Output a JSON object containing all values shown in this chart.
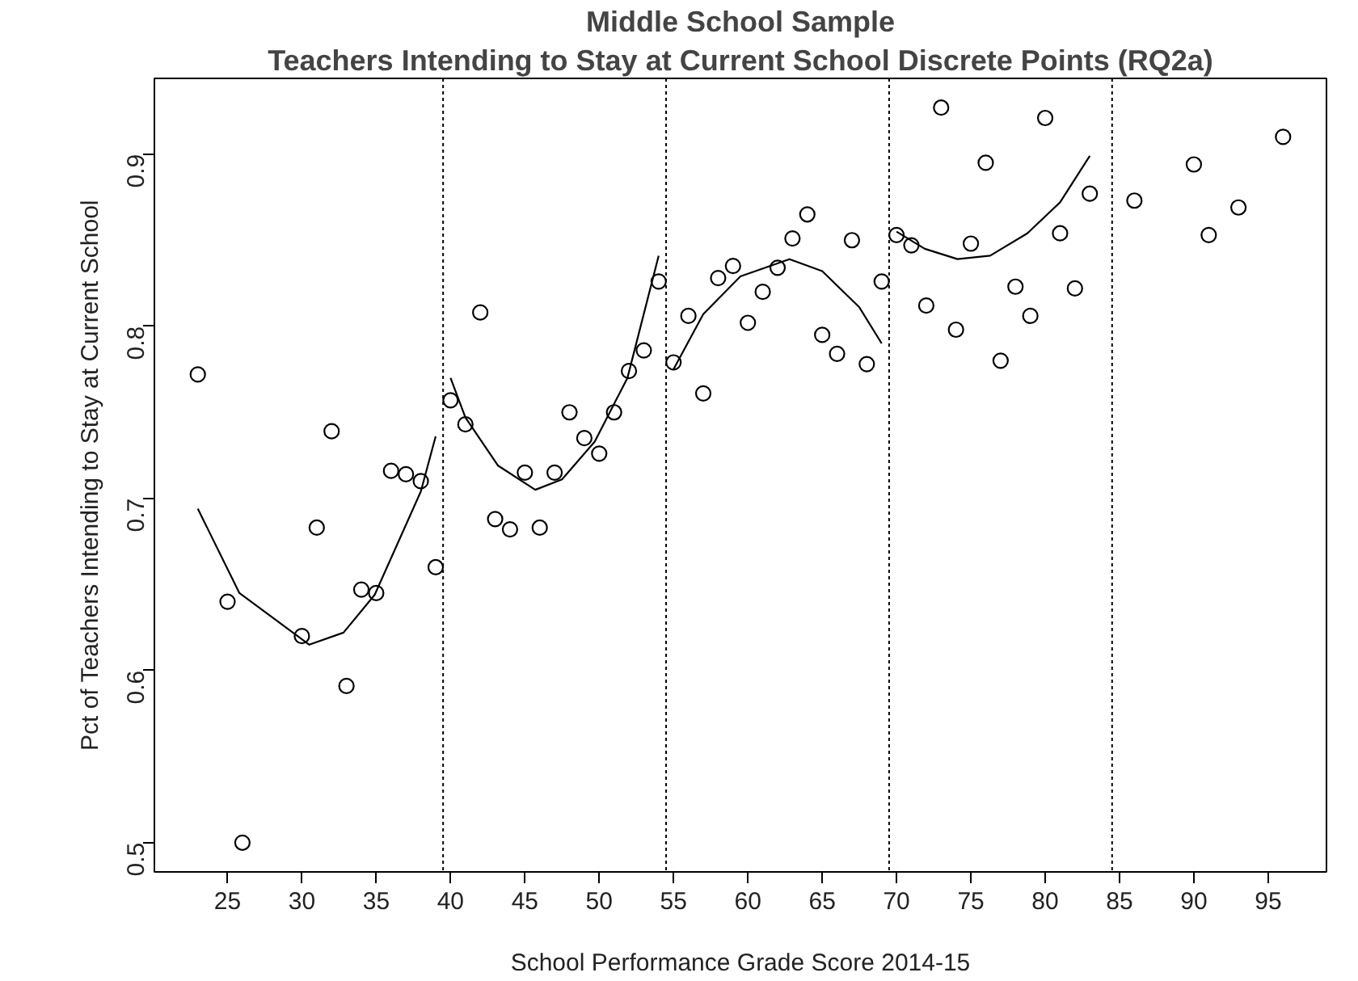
{
  "chart_data": {
    "type": "scatter",
    "title": "Middle School Sample",
    "subtitle": "Teachers Intending to Stay at Current School Discrete Points (RQ2a)",
    "xlabel": "School Performance Grade Score 2014-15",
    "ylabel": "Pct of Teachers Intending to Stay at Current School",
    "xlim": [
      20.08,
      98.92
    ],
    "ylim": [
      0.483,
      0.944
    ],
    "xticks": [
      25,
      30,
      35,
      40,
      45,
      50,
      55,
      60,
      65,
      70,
      75,
      80,
      85,
      90,
      95
    ],
    "yticks": [
      {
        "value": 0.5,
        "label": "0.5"
      },
      {
        "value": 0.6,
        "label": "0.6"
      },
      {
        "value": 0.7,
        "label": "0.7"
      },
      {
        "value": 0.8,
        "label": "0.8"
      },
      {
        "value": 0.9,
        "label": "0.9"
      }
    ],
    "series": [
      {
        "marker": "circle",
        "color": "#000000",
        "x": [
          23,
          25,
          26,
          30,
          31,
          32,
          33,
          34,
          35,
          36,
          37,
          38,
          39,
          40,
          41,
          42,
          43,
          44,
          45,
          46,
          47,
          48,
          49,
          50,
          51,
          52,
          53,
          54,
          55,
          56,
          57,
          58,
          59,
          60,
          61,
          62,
          63,
          64,
          65,
          66,
          67,
          68,
          69,
          70,
          71,
          72,
          73,
          74,
          75,
          76,
          77,
          78,
          79,
          80,
          81,
          82,
          83,
          86,
          90,
          91,
          93,
          96
        ],
        "values": [
          0.772,
          0.64,
          0.5,
          0.62,
          0.683,
          0.739,
          0.591,
          0.647,
          0.645,
          0.716,
          0.714,
          0.71,
          0.66,
          0.757,
          0.743,
          0.808,
          0.688,
          0.682,
          0.715,
          0.683,
          0.715,
          0.75,
          0.735,
          0.726,
          0.75,
          0.774,
          0.786,
          0.826,
          0.779,
          0.806,
          0.761,
          0.828,
          0.835,
          0.802,
          0.82,
          0.834,
          0.851,
          0.865,
          0.795,
          0.784,
          0.85,
          0.778,
          0.826,
          0.853,
          0.847,
          0.812,
          0.927,
          0.798,
          0.848,
          0.895,
          0.78,
          0.823,
          0.806,
          0.921,
          0.854,
          0.822,
          0.877,
          0.873,
          0.894,
          0.853,
          0.869,
          0.91
        ]
      },
      {
        "type": "line",
        "marker": "none",
        "color": "#000000",
        "x": [
          23,
          25.8,
          30.5,
          32.8,
          34.9,
          38,
          39
        ],
        "values": [
          0.694,
          0.645,
          0.615,
          0.622,
          0.644,
          0.704,
          0.736
        ]
      },
      {
        "type": "line",
        "marker": "none",
        "color": "#000000",
        "x": [
          40,
          41,
          43.2,
          45.7,
          47.5,
          49.7,
          51.9,
          54
        ],
        "values": [
          0.77,
          0.747,
          0.719,
          0.705,
          0.711,
          0.733,
          0.77,
          0.841
        ]
      },
      {
        "type": "line",
        "marker": "none",
        "color": "#000000",
        "x": [
          55,
          57,
          59.5,
          62.8,
          65,
          67.5,
          69
        ],
        "values": [
          0.775,
          0.807,
          0.829,
          0.839,
          0.832,
          0.811,
          0.79
        ]
      },
      {
        "type": "line",
        "marker": "none",
        "color": "#000000",
        "x": [
          70,
          71.9,
          74.1,
          76.3,
          78.8,
          81,
          83
        ],
        "values": [
          0.855,
          0.845,
          0.839,
          0.841,
          0.854,
          0.872,
          0.899
        ]
      }
    ],
    "ref_lines": [
      {
        "axis": "x",
        "value": 39.5,
        "color": "#000000",
        "line_style": "dotted"
      },
      {
        "axis": "x",
        "value": 54.5,
        "color": "#000000",
        "line_style": "dotted"
      },
      {
        "axis": "x",
        "value": 69.5,
        "color": "#000000",
        "line_style": "dotted"
      },
      {
        "axis": "x",
        "value": 84.5,
        "color": "#000000",
        "line_style": "dotted"
      }
    ]
  }
}
